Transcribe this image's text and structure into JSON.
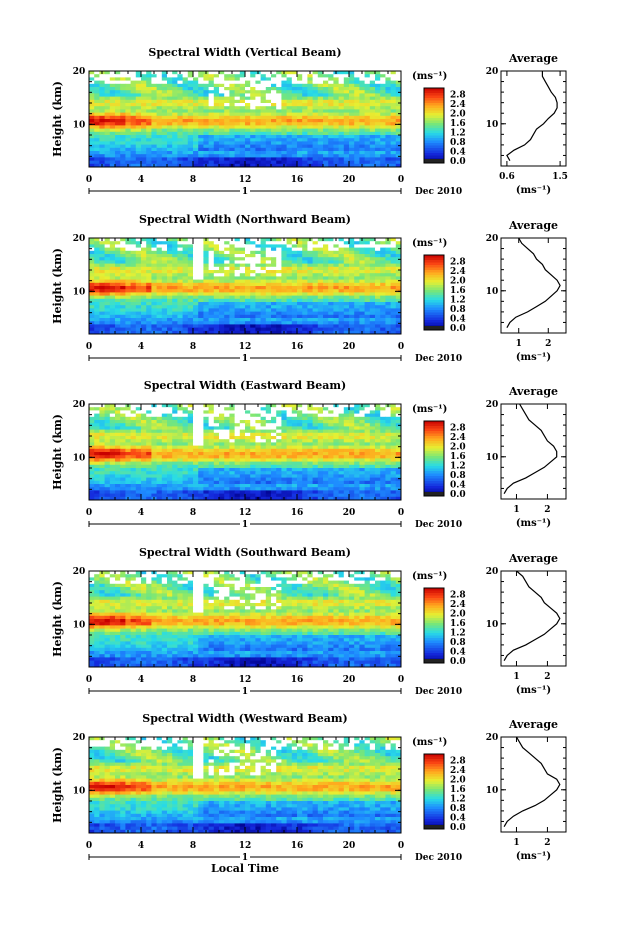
{
  "figure": {
    "x_axis_label": "Local Time",
    "date_label": "Dec 2010",
    "day_label": "1",
    "colorbar_unit": "(ms⁻¹)",
    "average_title": "Average",
    "avg_xlabel": "(ms⁻¹)"
  },
  "chart_data": [
    {
      "type": "heatmap",
      "title": "Spectral Width (Vertical Beam)",
      "xlabel": "",
      "ylabel": "Height (km)",
      "x_ticks": [
        "0",
        "4",
        "8",
        "12",
        "16",
        "20",
        "0"
      ],
      "x_range": [
        0,
        24
      ],
      "y_ticks": [
        "20",
        "10"
      ],
      "y_range": [
        2,
        20
      ],
      "colorbar_ticks": [
        "2.8",
        "2.4",
        "2.0",
        "1.6",
        "1.2",
        "0.8",
        "0.4",
        "0.0"
      ],
      "colorbar_range": [
        0.0,
        3.0
      ],
      "average_profile": {
        "x_ticks": [
          "0.6",
          "1.5"
        ],
        "x_range": [
          0.5,
          1.6
        ],
        "y_ticks": [
          "20",
          "10"
        ],
        "heights": [
          3,
          4,
          5,
          6,
          7,
          8,
          9,
          10,
          11,
          12,
          13,
          14,
          15,
          16,
          17,
          18,
          19,
          20
        ],
        "values": [
          0.65,
          0.6,
          0.72,
          0.9,
          1.0,
          1.05,
          1.1,
          1.22,
          1.3,
          1.4,
          1.45,
          1.45,
          1.42,
          1.35,
          1.3,
          1.25,
          1.2,
          1.2
        ]
      }
    },
    {
      "type": "heatmap",
      "title": "Spectral Width (Northward Beam)",
      "xlabel": "",
      "ylabel": "Height (km)",
      "x_ticks": [
        "0",
        "4",
        "8",
        "12",
        "16",
        "20",
        "0"
      ],
      "x_range": [
        0,
        24
      ],
      "y_ticks": [
        "20",
        "10"
      ],
      "y_range": [
        2,
        20
      ],
      "colorbar_ticks": [
        "2.8",
        "2.4",
        "2.0",
        "1.6",
        "1.2",
        "0.8",
        "0.4",
        "0.0"
      ],
      "colorbar_range": [
        0.0,
        3.0
      ],
      "average_profile": {
        "x_ticks": [
          "1",
          "2"
        ],
        "x_range": [
          0.4,
          2.6
        ],
        "y_ticks": [
          "20",
          "10"
        ],
        "heights": [
          3,
          4,
          5,
          6,
          7,
          8,
          9,
          10,
          11,
          12,
          13,
          14,
          15,
          16,
          17,
          18,
          19,
          20
        ],
        "values": [
          0.6,
          0.7,
          0.9,
          1.3,
          1.6,
          1.9,
          2.1,
          2.3,
          2.4,
          2.3,
          2.1,
          1.9,
          1.8,
          1.6,
          1.5,
          1.3,
          1.1,
          1.0
        ]
      }
    },
    {
      "type": "heatmap",
      "title": "Spectral Width (Eastward Beam)",
      "xlabel": "",
      "ylabel": "Height (km)",
      "x_ticks": [
        "0",
        "4",
        "8",
        "12",
        "16",
        "20",
        "0"
      ],
      "x_range": [
        0,
        24
      ],
      "y_ticks": [
        "20",
        "10"
      ],
      "y_range": [
        2,
        20
      ],
      "colorbar_ticks": [
        "2.8",
        "2.4",
        "2.0",
        "1.6",
        "1.2",
        "0.8",
        "0.4",
        "0.0"
      ],
      "colorbar_range": [
        0.0,
        3.0
      ],
      "average_profile": {
        "x_ticks": [
          "1",
          "2"
        ],
        "x_range": [
          0.5,
          2.6
        ],
        "y_ticks": [
          "20",
          "10"
        ],
        "heights": [
          3,
          4,
          5,
          6,
          7,
          8,
          9,
          10,
          11,
          12,
          13,
          14,
          15,
          16,
          17,
          18,
          19,
          20
        ],
        "values": [
          0.6,
          0.7,
          0.9,
          1.3,
          1.6,
          1.9,
          2.1,
          2.3,
          2.3,
          2.2,
          2.0,
          1.9,
          1.8,
          1.6,
          1.4,
          1.3,
          1.2,
          1.1
        ]
      }
    },
    {
      "type": "heatmap",
      "title": "Spectral Width (Southward Beam)",
      "xlabel": "",
      "ylabel": "Height (km)",
      "x_ticks": [
        "0",
        "4",
        "8",
        "12",
        "16",
        "20",
        "0"
      ],
      "x_range": [
        0,
        24
      ],
      "y_ticks": [
        "20",
        "10"
      ],
      "y_range": [
        2,
        20
      ],
      "colorbar_ticks": [
        "2.8",
        "2.4",
        "2.0",
        "1.6",
        "1.2",
        "0.8",
        "0.4",
        "0.0"
      ],
      "colorbar_range": [
        0.0,
        3.0
      ],
      "average_profile": {
        "x_ticks": [
          "1",
          "2"
        ],
        "x_range": [
          0.5,
          2.6
        ],
        "y_ticks": [
          "20",
          "10"
        ],
        "heights": [
          3,
          4,
          5,
          6,
          7,
          8,
          9,
          10,
          11,
          12,
          13,
          14,
          15,
          16,
          17,
          18,
          19,
          20
        ],
        "values": [
          0.6,
          0.7,
          0.9,
          1.3,
          1.6,
          1.9,
          2.1,
          2.3,
          2.4,
          2.3,
          2.1,
          1.9,
          1.8,
          1.6,
          1.4,
          1.3,
          1.2,
          1.0
        ]
      }
    },
    {
      "type": "heatmap",
      "title": "Spectral Width (Westward Beam)",
      "xlabel": "Local Time",
      "ylabel": "Height (km)",
      "x_ticks": [
        "0",
        "4",
        "8",
        "12",
        "16",
        "20",
        "0"
      ],
      "x_range": [
        0,
        24
      ],
      "y_ticks": [
        "20",
        "10"
      ],
      "y_range": [
        2,
        20
      ],
      "colorbar_ticks": [
        "2.8",
        "2.4",
        "2.0",
        "1.6",
        "1.2",
        "0.8",
        "0.4",
        "0.0"
      ],
      "colorbar_range": [
        0.0,
        3.0
      ],
      "average_profile": {
        "x_ticks": [
          "1",
          "2"
        ],
        "x_range": [
          0.5,
          2.6
        ],
        "y_ticks": [
          "20",
          "10"
        ],
        "heights": [
          3,
          4,
          5,
          6,
          7,
          8,
          9,
          10,
          11,
          12,
          13,
          14,
          15,
          16,
          17,
          18,
          19,
          20
        ],
        "values": [
          0.6,
          0.7,
          0.9,
          1.2,
          1.6,
          1.9,
          2.1,
          2.3,
          2.4,
          2.3,
          2.0,
          1.9,
          1.8,
          1.6,
          1.4,
          1.2,
          1.1,
          1.0
        ]
      }
    }
  ]
}
